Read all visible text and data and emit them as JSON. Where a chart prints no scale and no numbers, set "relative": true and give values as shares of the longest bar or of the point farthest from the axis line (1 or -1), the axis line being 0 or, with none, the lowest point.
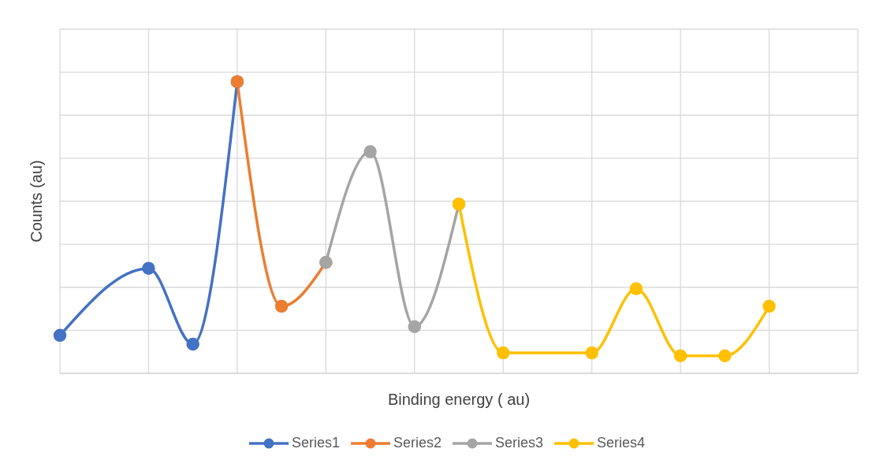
{
  "chart_data": {
    "type": "line",
    "xlabel": "Binding energy ( au)",
    "ylabel": "Counts (au)",
    "relative": true,
    "categories": [
      null,
      null,
      null,
      null,
      null,
      null,
      null,
      null,
      null,
      null,
      null,
      null,
      null,
      null,
      null,
      null,
      null,
      null,
      null
    ],
    "grid": true,
    "legend": "bottom",
    "marker": "circle",
    "line_style": "solid",
    "series": [
      {
        "name": "Series1",
        "color": "#4472c4",
        "values": [
          0.13,
          null,
          0.36,
          0.1,
          1,
          null,
          null,
          null,
          null,
          null,
          null,
          null,
          null,
          null,
          null,
          null,
          null,
          null,
          null
        ]
      },
      {
        "name": "Series2",
        "color": "#ed7d31",
        "values": [
          null,
          null,
          null,
          null,
          1,
          0.23,
          0.38,
          null,
          null,
          null,
          null,
          null,
          null,
          null,
          null,
          null,
          null,
          null,
          null
        ]
      },
      {
        "name": "Series3",
        "color": "#a5a5a5",
        "values": [
          null,
          null,
          null,
          null,
          null,
          null,
          0.38,
          0.76,
          0.16,
          0.58,
          null,
          null,
          null,
          null,
          null,
          null,
          null,
          null,
          null
        ]
      },
      {
        "name": "Series4",
        "color": "#ffc000",
        "values": [
          null,
          null,
          null,
          null,
          null,
          null,
          null,
          null,
          null,
          0.58,
          0.07,
          null,
          0.07,
          0.29,
          0.06,
          0.06,
          0.23,
          null,
          null
        ]
      }
    ]
  }
}
